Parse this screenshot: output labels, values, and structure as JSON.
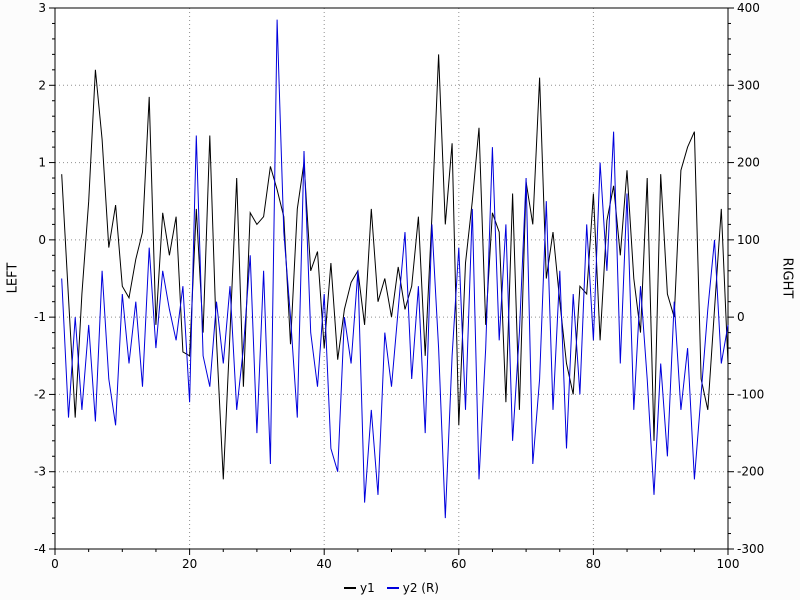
{
  "chart_data": {
    "type": "line",
    "title": "",
    "xlabel": "",
    "ylabel_left": "LEFT",
    "ylabel_right": "RIGHT",
    "grid": true,
    "grid_color": "#909090",
    "legend_position": "bottom-center",
    "x_range": [
      0,
      100
    ],
    "x_ticks": [
      0,
      20,
      40,
      60,
      80,
      100
    ],
    "x_minor_step": 5,
    "left_axis": {
      "range": [
        -4,
        3
      ],
      "ticks": [
        3,
        2,
        1,
        0,
        -1,
        -2,
        -3,
        -4
      ],
      "minor_step": 0.2
    },
    "right_axis": {
      "range": [
        -300,
        400
      ],
      "ticks": [
        400,
        300,
        200,
        100,
        0,
        -100,
        -200,
        -300
      ],
      "minor_step": 20
    },
    "x": [
      1,
      2,
      3,
      4,
      5,
      6,
      7,
      8,
      9,
      10,
      11,
      12,
      13,
      14,
      15,
      16,
      17,
      18,
      19,
      20,
      21,
      22,
      23,
      24,
      25,
      26,
      27,
      28,
      29,
      30,
      31,
      32,
      33,
      34,
      35,
      36,
      37,
      38,
      39,
      40,
      41,
      42,
      43,
      44,
      45,
      46,
      47,
      48,
      49,
      50,
      51,
      52,
      53,
      54,
      55,
      56,
      57,
      58,
      59,
      60,
      61,
      62,
      63,
      64,
      65,
      66,
      67,
      68,
      69,
      70,
      71,
      72,
      73,
      74,
      75,
      76,
      77,
      78,
      79,
      80,
      81,
      82,
      83,
      84,
      85,
      86,
      87,
      88,
      89,
      90,
      91,
      92,
      93,
      94,
      95,
      96,
      97,
      98,
      99,
      100
    ],
    "series": [
      {
        "name": "y1",
        "axis": "left",
        "color": "#000000",
        "values": [
          0.85,
          -0.75,
          -2.3,
          -0.7,
          0.5,
          2.2,
          1.3,
          -0.1,
          0.45,
          -0.6,
          -0.75,
          -0.25,
          0.1,
          1.85,
          -1.1,
          0.35,
          -0.2,
          0.3,
          -1.45,
          -1.5,
          0.4,
          -1.2,
          1.35,
          -1.3,
          -3.1,
          -1.2,
          0.8,
          -1.9,
          0.35,
          0.2,
          0.3,
          0.95,
          0.65,
          0.3,
          -1.35,
          0.4,
          1.0,
          -0.4,
          -0.15,
          -1.4,
          -0.3,
          -1.55,
          -0.9,
          -0.55,
          -0.4,
          -1.1,
          0.4,
          -0.8,
          -0.5,
          -1.0,
          -0.35,
          -0.9,
          -0.6,
          0.3,
          -1.5,
          0.3,
          2.4,
          0.2,
          1.25,
          -2.4,
          -0.3,
          0.5,
          1.45,
          -1.1,
          0.35,
          0.1,
          -2.1,
          0.6,
          -2.2,
          0.75,
          0.2,
          2.1,
          -0.5,
          0.1,
          -0.8,
          -1.6,
          -2.0,
          -0.6,
          -0.7,
          0.6,
          -1.3,
          0.25,
          0.7,
          -0.2,
          0.9,
          -0.5,
          -1.2,
          0.8,
          -2.6,
          0.85,
          -0.7,
          -1.0,
          0.9,
          1.2,
          1.4,
          -1.8,
          -2.2,
          -0.9,
          0.4,
          -1.6
        ]
      },
      {
        "name": "y2 (R)",
        "axis": "right",
        "color": "#0000dd",
        "values": [
          50,
          -130,
          0,
          -120,
          -10,
          -135,
          60,
          -80,
          -140,
          30,
          -60,
          20,
          -90,
          90,
          -40,
          60,
          10,
          -30,
          40,
          -110,
          235,
          -50,
          -90,
          20,
          -60,
          40,
          -120,
          -40,
          80,
          -150,
          60,
          -190,
          385,
          110,
          0,
          -130,
          215,
          -20,
          -90,
          30,
          -170,
          -200,
          0,
          -60,
          60,
          -240,
          -120,
          -230,
          -20,
          -90,
          10,
          110,
          -80,
          40,
          -150,
          120,
          -40,
          -260,
          -50,
          90,
          -120,
          140,
          -210,
          -40,
          220,
          -30,
          120,
          -160,
          -20,
          180,
          -190,
          -80,
          150,
          -120,
          60,
          -170,
          30,
          -100,
          120,
          -30,
          200,
          60,
          240,
          -60,
          160,
          -120,
          40,
          -80,
          -230,
          -60,
          -180,
          20,
          -120,
          -40,
          -210,
          -100,
          10,
          100,
          -60,
          -10
        ]
      }
    ]
  }
}
